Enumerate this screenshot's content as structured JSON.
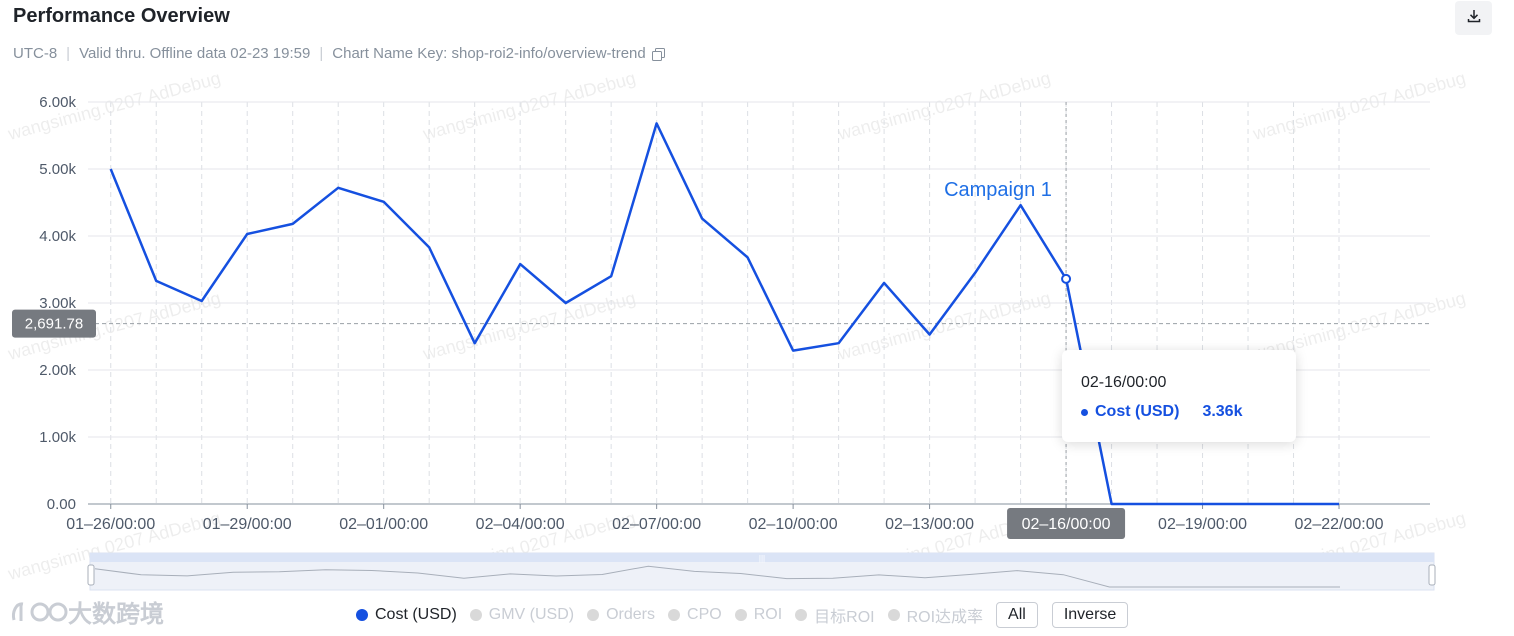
{
  "header": {
    "title": "Performance Overview",
    "timezone": "UTC-8",
    "validity": "Valid thru. Offline data 02-23 19:59",
    "chart_key": "Chart Name Key: shop-roi2-info/overview-trend",
    "separator": "|"
  },
  "chart_data": {
    "type": "line",
    "x": [
      "01-26",
      "01-27",
      "01-28",
      "01-29",
      "01-30",
      "01-31",
      "02-01",
      "02-02",
      "02-03",
      "02-04",
      "02-05",
      "02-06",
      "02-07",
      "02-08",
      "02-09",
      "02-10",
      "02-11",
      "02-12",
      "02-13",
      "02-14",
      "02-15",
      "02-16",
      "02-17",
      "02-18",
      "02-19",
      "02-20",
      "02-21",
      "02-22"
    ],
    "x_ticks": [
      "01–26/00:00",
      "01–29/00:00",
      "02–01/00:00",
      "02–04/00:00",
      "02–07/00:00",
      "02–10/00:00",
      "02–13/00:00",
      "02–16/00:00",
      "02–19/00:00",
      "02–22/00:00"
    ],
    "x_tick_index": [
      0,
      3,
      6,
      9,
      12,
      15,
      18,
      21,
      24,
      27
    ],
    "x_extent_days": 29.5,
    "series": [
      {
        "name": "Cost (USD)",
        "color": "#1550e0",
        "values": [
          5000,
          3330,
          3030,
          4030,
          4180,
          4720,
          4510,
          3830,
          2400,
          3580,
          3000,
          3400,
          5680,
          4260,
          3680,
          2290,
          2400,
          3300,
          2530,
          3450,
          4460,
          3360,
          0,
          0,
          0,
          0,
          0,
          0
        ]
      }
    ],
    "y_ticks": [
      "0.00",
      "1.00k",
      "2.00k",
      "3.00k",
      "4.00k",
      "5.00k",
      "6.00k"
    ],
    "ylim": [
      0,
      6000
    ],
    "reference_line": {
      "value": 2691.78,
      "label": "2,691.78"
    },
    "annotation": {
      "label": "Campaign 1",
      "x_index": 21
    },
    "hover": {
      "x_index": 21,
      "x_label": "02–16/00:00"
    },
    "grid": true
  },
  "tooltip": {
    "date": "02-16/00:00",
    "series": "Cost (USD)",
    "value": "3.36k"
  },
  "legend": {
    "items": [
      {
        "label": "Cost (USD)",
        "active": true
      },
      {
        "label": "GMV (USD)",
        "active": false
      },
      {
        "label": "Orders",
        "active": false
      },
      {
        "label": "CPO",
        "active": false
      },
      {
        "label": "ROI",
        "active": false
      },
      {
        "label": "目标ROI",
        "active": false
      },
      {
        "label": "ROI达成率",
        "active": false
      }
    ],
    "all_label": "All",
    "inverse_label": "Inverse"
  },
  "watermark": "wangsiming.0207 AdDebug",
  "brand": {
    "name": "大数跨境"
  },
  "colors": {
    "accent": "#1550e0",
    "grid": "#e5e6eb",
    "muted": "#86909c"
  }
}
